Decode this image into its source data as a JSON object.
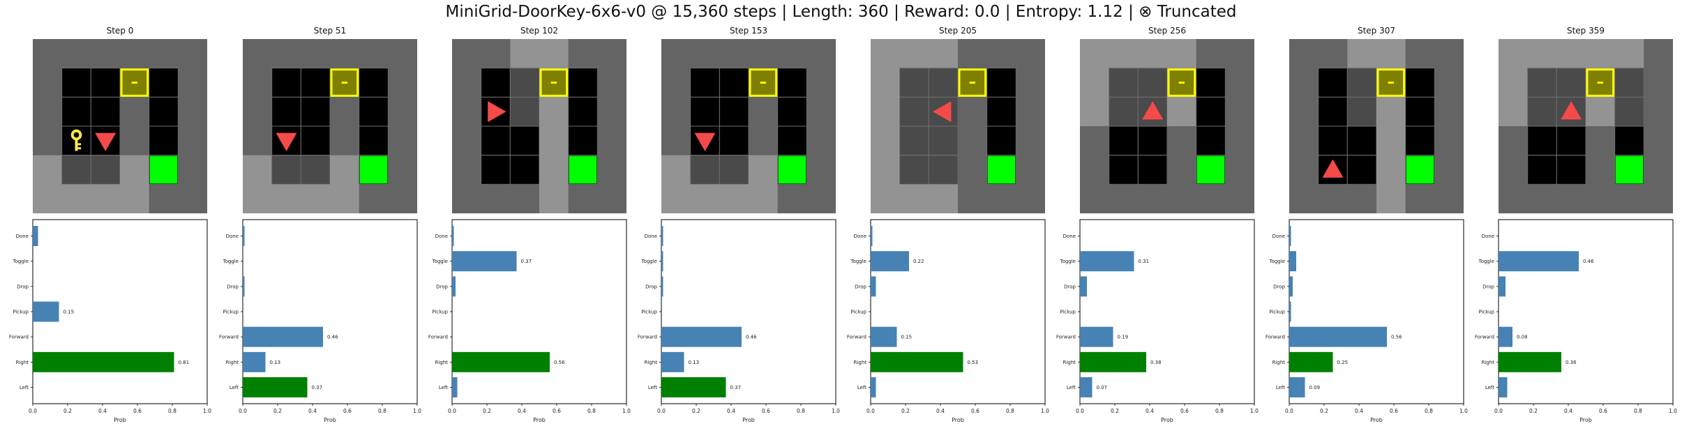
{
  "title": "MiniGrid-DoorKey-6x6-v0 @ 15,360 steps | Length: 360 | Reward: 0.0 | Entropy: 1.12 | ⊗ Truncated",
  "colors": {
    "bar": "#4682b4",
    "chosen": "#008000",
    "agent": "#f44a4a",
    "goal": "#00ff00",
    "door": "#7f7f00",
    "door_border": "#ffff00",
    "key": "#ffe94a",
    "wall": "#646464",
    "floor": "#000000",
    "seen": "#939393"
  },
  "icons": {
    "agent": "red-triangle-icon",
    "key": "key-icon",
    "door": "locked-door-icon",
    "goal": "goal-square-icon"
  },
  "chart_data": {
    "type": "bar",
    "orientation": "horizontal",
    "categories": [
      "Left",
      "Right",
      "Forward",
      "Pickup",
      "Drop",
      "Toggle",
      "Done"
    ],
    "xlabel": "Prob",
    "xlim": [
      0,
      1
    ],
    "xticks": [
      "0.0",
      "0.2",
      "0.4",
      "0.6",
      "0.8",
      "1.0"
    ],
    "panels": [
      {
        "title": "Step 0",
        "values": [
          0.0,
          0.81,
          0.0,
          0.15,
          0.0,
          0.0,
          0.03
        ],
        "chosen": "Right",
        "labels": [
          "",
          "0.81",
          "",
          "0.15",
          "",
          "",
          ""
        ]
      },
      {
        "title": "Step 51",
        "values": [
          0.37,
          0.13,
          0.46,
          0.0,
          0.01,
          0.0,
          0.01
        ],
        "chosen": "Left",
        "labels": [
          "0.37",
          "0.13",
          "0.46",
          "",
          "",
          "",
          ""
        ]
      },
      {
        "title": "Step 102",
        "values": [
          0.03,
          0.56,
          0.0,
          0.0,
          0.02,
          0.37,
          0.01
        ],
        "chosen": "Right",
        "labels": [
          "",
          "0.56",
          "",
          "",
          "",
          "0.37",
          ""
        ]
      },
      {
        "title": "Step 153",
        "values": [
          0.37,
          0.13,
          0.46,
          0.0,
          0.01,
          0.01,
          0.01
        ],
        "chosen": "Left",
        "labels": [
          "0.37",
          "0.13",
          "0.46",
          "",
          "",
          "",
          ""
        ]
      },
      {
        "title": "Step 205",
        "values": [
          0.03,
          0.53,
          0.15,
          0.0,
          0.03,
          0.22,
          0.01
        ],
        "chosen": "Right",
        "labels": [
          "",
          "0.53",
          "0.15",
          "",
          "",
          "0.22",
          ""
        ]
      },
      {
        "title": "Step 256",
        "values": [
          0.07,
          0.38,
          0.19,
          0.0,
          0.04,
          0.31,
          0.0
        ],
        "chosen": "Right",
        "labels": [
          "0.07",
          "0.38",
          "0.19",
          "",
          "",
          "0.31",
          ""
        ]
      },
      {
        "title": "Step 307",
        "values": [
          0.09,
          0.25,
          0.56,
          0.01,
          0.02,
          0.04,
          0.01
        ],
        "chosen": "Right",
        "labels": [
          "0.09",
          "0.25",
          "0.56",
          "",
          "",
          "",
          ""
        ]
      },
      {
        "title": "Step 359",
        "values": [
          0.05,
          0.36,
          0.08,
          0.0,
          0.04,
          0.46,
          0.0
        ],
        "chosen": "Right",
        "labels": [
          "",
          "0.36",
          "0.08",
          "",
          "",
          "0.46",
          ""
        ]
      }
    ]
  },
  "frames": [
    {
      "agent": [
        2,
        3
      ],
      "dir": "down",
      "key": [
        1,
        3
      ],
      "seen": "rows34"
    },
    {
      "agent": [
        1,
        3
      ],
      "dir": "down",
      "key": null,
      "seen": "rows34"
    },
    {
      "agent": [
        1,
        2
      ],
      "dir": "right",
      "key": null,
      "seen": "col3"
    },
    {
      "agent": [
        1,
        3
      ],
      "dir": "down",
      "key": null,
      "seen": "rows34"
    },
    {
      "agent": [
        2,
        2
      ],
      "dir": "left",
      "key": null,
      "seen": "left3"
    },
    {
      "agent": [
        2,
        2
      ],
      "dir": "up",
      "key": null,
      "seen": "top3"
    },
    {
      "agent": [
        1,
        4
      ],
      "dir": "up",
      "key": null,
      "seen": "col3"
    },
    {
      "agent": [
        2,
        2
      ],
      "dir": "up",
      "key": null,
      "seen": "top2"
    }
  ]
}
